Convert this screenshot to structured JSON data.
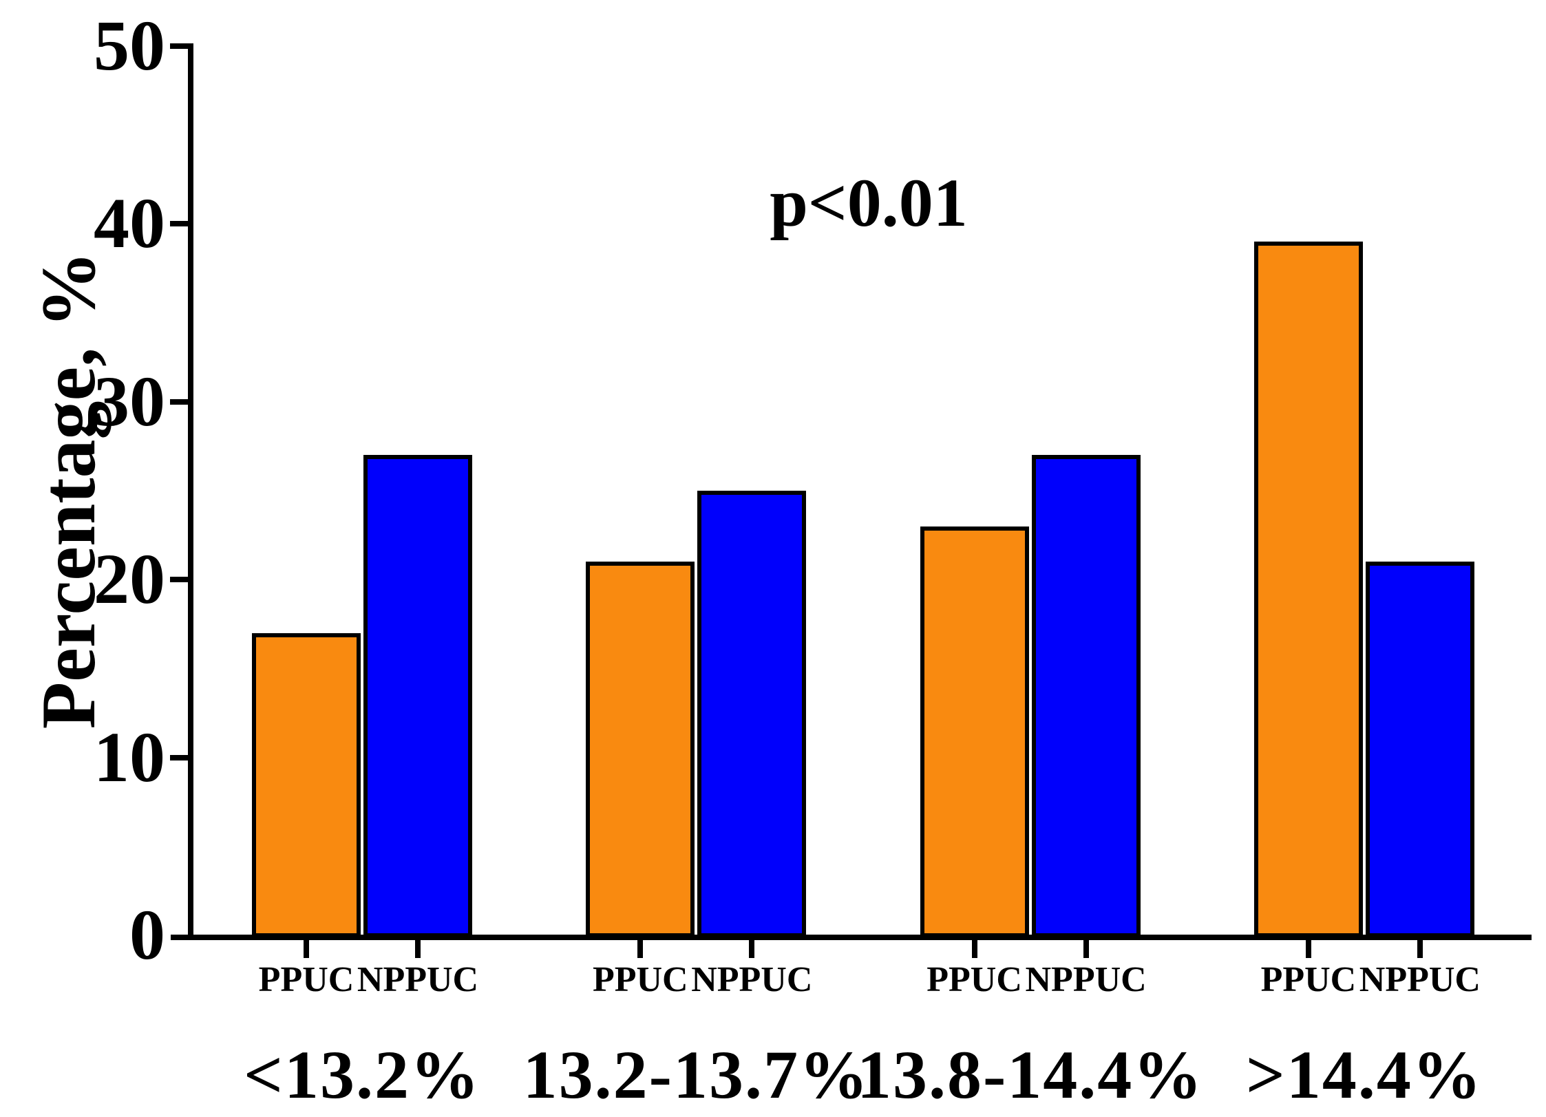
{
  "chart_data": {
    "type": "bar",
    "title": "",
    "xlabel": "",
    "ylabel": "Percentage, %",
    "annotation": "p<0.01",
    "ylim": [
      0,
      50
    ],
    "ytick_values": [
      0,
      10,
      20,
      30,
      40,
      50
    ],
    "categories": [
      "<13.2%",
      "13.2-13.7%",
      "13.8-14.4%",
      ">14.4%"
    ],
    "bar_sublabels": [
      "PPUC",
      "NPPUC"
    ],
    "series": [
      {
        "name": "PPUC",
        "color": "#F98A10",
        "values": [
          17,
          21,
          23,
          39
        ]
      },
      {
        "name": "NPPUC",
        "color": "#0000FC",
        "values": [
          27,
          25,
          27,
          21
        ]
      }
    ],
    "grid": false,
    "legend_position": "none",
    "colors": {
      "ppuc_orange": "#F98A10",
      "nppuc_blue": "#0000FC",
      "axis_black": "#000000",
      "background": "#ffffff"
    }
  }
}
